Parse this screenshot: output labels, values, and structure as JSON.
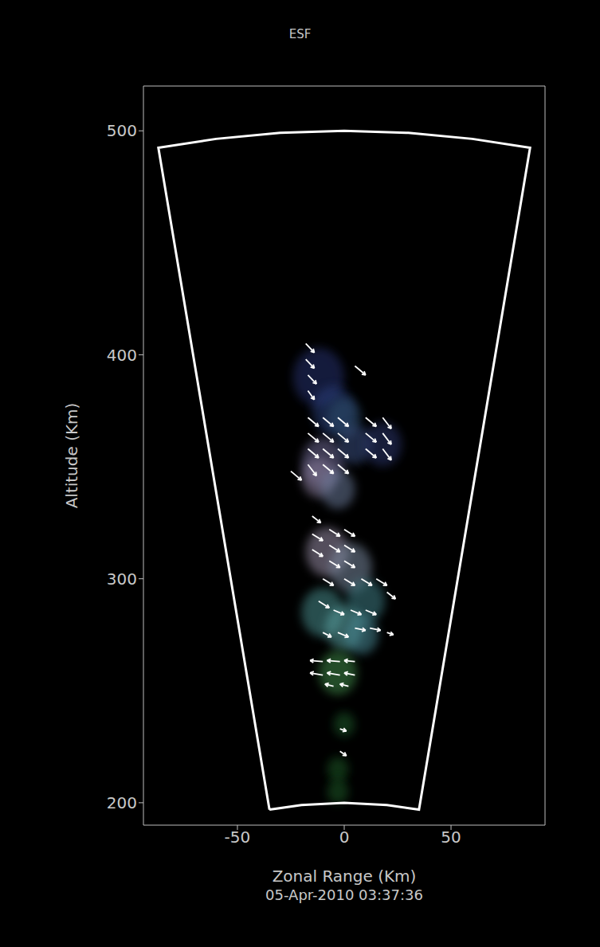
{
  "chart_data": {
    "type": "scatter",
    "title": "ESF",
    "subtitle": "05-Apr-2010 03:37:36",
    "x_label": "Zonal Range (Km)",
    "y_label": "Altitude (Km)",
    "xlim": [
      -94,
      94
    ],
    "ylim": [
      190,
      520
    ],
    "xticks": [
      -50,
      0,
      50
    ],
    "yticks": [
      200,
      300,
      400,
      500
    ],
    "coverage_outline": {
      "x": [
        -35,
        -20,
        0,
        20,
        35,
        87,
        60,
        30,
        0,
        -30,
        -60,
        -87,
        -35
      ],
      "y": [
        196.9,
        199,
        200,
        199,
        196.9,
        492.4,
        496.4,
        499.1,
        500,
        499.1,
        496.4,
        492.4,
        196.9
      ],
      "color": "#ffffff"
    },
    "echoes": {
      "x": [
        -12,
        -5,
        0,
        -10,
        5,
        -12,
        -3,
        -8,
        3,
        10,
        18,
        -10,
        0,
        8,
        -3,
        0,
        -3,
        -3
      ],
      "y": [
        390,
        375,
        372,
        352,
        360,
        345,
        340,
        312,
        305,
        290,
        360,
        285,
        278,
        275,
        258,
        235,
        215,
        205
      ],
      "size": [
        12,
        10,
        8,
        10,
        8,
        8,
        8,
        10,
        10,
        9,
        9,
        10,
        9,
        8,
        9,
        5,
        5,
        5
      ],
      "colors": [
        "#27306e",
        "#2c3f7a",
        "#2d4f6e",
        "#6f6a96",
        "#3a4f80",
        "#8c7f9e",
        "#6a7a9a",
        "#9a8fa8",
        "#7a8aa0",
        "#3f7f86",
        "#2a356a",
        "#4a8e8e",
        "#5aa0a0",
        "#4a8a96",
        "#3f8a4a",
        "#1f5a2a",
        "#1d5a28",
        "#1d5a28"
      ]
    },
    "vectors": {
      "x": [
        -18,
        -18,
        -17,
        -17,
        5,
        -17,
        -10,
        -3,
        -17,
        -10,
        -3,
        -17,
        -10,
        -3,
        -17,
        -10,
        -3,
        10,
        18,
        10,
        18,
        10,
        18,
        -25,
        -15,
        -7,
        0,
        -15,
        -7,
        0,
        -15,
        -7,
        0,
        -10,
        0,
        8,
        15,
        20,
        -12,
        -5,
        3,
        10,
        -10,
        -3,
        5,
        12,
        20,
        -10,
        -2,
        5,
        -10,
        -2,
        5,
        -5,
        2,
        -2,
        -2
      ],
      "y": [
        405,
        398,
        391,
        384,
        395,
        372,
        372,
        372,
        365,
        365,
        365,
        358,
        358,
        358,
        351,
        351,
        351,
        372,
        372,
        365,
        365,
        358,
        358,
        348,
        328,
        322,
        322,
        320,
        315,
        315,
        313,
        308,
        308,
        300,
        300,
        300,
        300,
        294,
        290,
        286,
        286,
        286,
        276,
        276,
        278,
        278,
        276,
        263,
        263,
        263,
        257,
        257,
        257,
        252,
        252,
        233,
        223
      ],
      "u": [
        4,
        4,
        4,
        3,
        5,
        5,
        5,
        5,
        5,
        5,
        5,
        5,
        5,
        5,
        4,
        5,
        5,
        5,
        4,
        5,
        4,
        5,
        4,
        5,
        4,
        5,
        5,
        5,
        5,
        5,
        5,
        5,
        5,
        5,
        5,
        5,
        5,
        4,
        5,
        5,
        5,
        5,
        4,
        5,
        5,
        5,
        3,
        -6,
        -6,
        -5,
        -6,
        -6,
        -5,
        -4,
        -4,
        3,
        3
      ],
      "v": [
        -4,
        -4,
        -4,
        -4,
        -4,
        -4,
        -4,
        -4,
        -4,
        -4,
        -4,
        -4,
        -4,
        -4,
        -5,
        -4,
        -4,
        -4,
        -5,
        -4,
        -5,
        -4,
        -5,
        -4,
        -3,
        -3,
        -3,
        -3,
        -3,
        -3,
        -3,
        -3,
        -3,
        -3,
        -3,
        -3,
        -3,
        -3,
        -3,
        -2,
        -2,
        -2,
        -2,
        -2,
        -1,
        -1,
        -1,
        0.5,
        0.5,
        0.5,
        1,
        1,
        1,
        1,
        1,
        -1,
        -2
      ],
      "color": "#ffffff"
    }
  }
}
